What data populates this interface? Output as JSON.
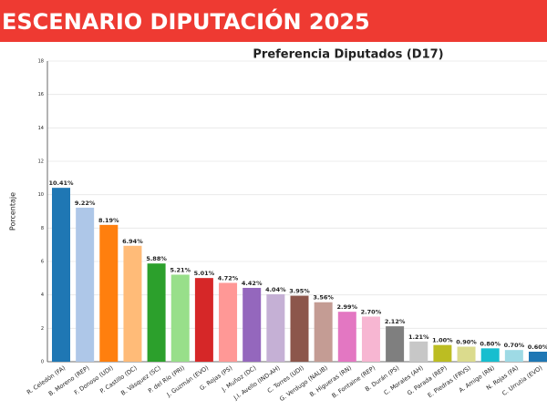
{
  "header": {
    "title": "ESCENARIO DIPUTACIÓN 2025"
  },
  "chart_data": {
    "type": "bar",
    "title": "Preferencia Diputados (D17)",
    "y_label": "Porcentaje",
    "categories": [
      "R. Celedón (FA)",
      "B. Moreno (REP)",
      "F. Donoso (UDI)",
      "P. Castillo (DC)",
      "B. Vásquez (SC)",
      "P. del Río (PRI)",
      "J. Guzmán (EVO)",
      "G. Rojas (PS)",
      "J. Muñoz (DC)",
      "J.I. Avello (IND-AH)",
      "C. Torres (UDI)",
      "G. Verdugo (NALIB)",
      "B. Higueras (RN)",
      "B. Fontaine (REP)",
      "B. Durán (PS)",
      "C. Morales (AH)",
      "G. Parada (REP)",
      "E. Piedras (FRVS)",
      "A. Amigo (RN)",
      "N. Rojas (FA)",
      "C. Urrutia (EVO)"
    ],
    "values": [
      10.41,
      9.22,
      8.19,
      6.94,
      5.88,
      5.21,
      5.01,
      4.72,
      4.42,
      4.04,
      3.95,
      3.56,
      2.99,
      2.7,
      2.12,
      1.21,
      1.0,
      0.9,
      0.8,
      0.7,
      0.6
    ],
    "value_labels": [
      "10.41%",
      "9.22%",
      "8.19%",
      "6.94%",
      "5.88%",
      "5.21%",
      "5.01%",
      "4.72%",
      "4.42%",
      "4.04%",
      "3.95%",
      "3.56%",
      "2.99%",
      "2.70%",
      "2.12%",
      "1.21%",
      "1.00%",
      "0.90%",
      "0.80%",
      "0.70%",
      "0.60%"
    ],
    "colors": [
      "#1f77b4",
      "#aec7e8",
      "#ff7f0e",
      "#ffbb78",
      "#2ca02c",
      "#98df8a",
      "#d62728",
      "#ff9896",
      "#9467bd",
      "#c5b0d5",
      "#8c564b",
      "#c49c94",
      "#e377c2",
      "#f7b6d2",
      "#7f7f7f",
      "#c7c7c7",
      "#bcbd22",
      "#dbdb8d",
      "#17becf",
      "#9edae5",
      "#1f77b4"
    ],
    "ylim": [
      0,
      18
    ],
    "yticks": [
      0,
      2,
      4,
      6,
      8,
      10,
      12,
      14,
      16,
      18
    ],
    "grid": true
  }
}
